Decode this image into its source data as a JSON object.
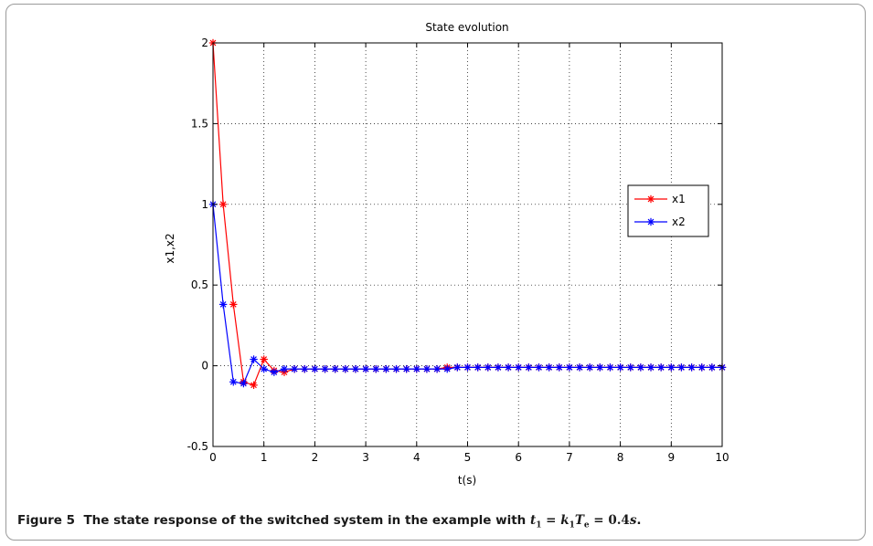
{
  "chart_data": {
    "type": "line",
    "title": "State evolution",
    "xlabel": "t(s)",
    "ylabel": "x1,x2",
    "xlim": [
      0,
      10
    ],
    "ylim": [
      -0.5,
      2
    ],
    "xticks": [
      0,
      1,
      2,
      3,
      4,
      5,
      6,
      7,
      8,
      9,
      10
    ],
    "xtick_labels": [
      "0",
      "1",
      "2",
      "3",
      "4",
      "5",
      "6",
      "7",
      "8",
      "9",
      "10"
    ],
    "yticks": [
      -0.5,
      0,
      0.5,
      1,
      1.5,
      2
    ],
    "ytick_labels": [
      "-0.5",
      "0",
      "0.5",
      "1",
      "1.5",
      "2"
    ],
    "grid": true,
    "legend_position": "right",
    "marker": "*",
    "x": [
      0,
      0.2,
      0.4,
      0.6,
      0.8,
      1.0,
      1.2,
      1.4,
      1.6,
      1.8,
      2.0,
      2.2,
      2.4,
      2.6,
      2.8,
      3.0,
      3.2,
      3.4,
      3.6,
      3.8,
      4.0,
      4.2,
      4.4,
      4.6,
      4.8,
      5.0,
      5.2,
      5.4,
      5.6,
      5.8,
      6.0,
      6.2,
      6.4,
      6.6,
      6.8,
      7.0,
      7.2,
      7.4,
      7.6,
      7.8,
      8.0,
      8.2,
      8.4,
      8.6,
      8.8,
      9.0,
      9.2,
      9.4,
      9.6,
      9.8,
      10.0
    ],
    "series": [
      {
        "name": "x1",
        "color": "#ff0000",
        "values": [
          2.0,
          1.0,
          0.38,
          -0.1,
          -0.12,
          0.04,
          -0.03,
          -0.04,
          -0.02,
          -0.02,
          -0.02,
          -0.02,
          -0.02,
          -0.02,
          -0.02,
          -0.02,
          -0.02,
          -0.02,
          -0.02,
          -0.02,
          -0.02,
          -0.02,
          -0.02,
          -0.01,
          -0.01,
          -0.01,
          -0.01,
          -0.01,
          -0.01,
          -0.01,
          -0.01,
          -0.01,
          -0.01,
          -0.01,
          -0.01,
          -0.01,
          -0.01,
          -0.01,
          -0.01,
          -0.01,
          -0.01,
          -0.01,
          -0.01,
          -0.01,
          -0.01,
          -0.01,
          -0.01,
          -0.01,
          -0.01,
          -0.01,
          -0.01
        ]
      },
      {
        "name": "x2",
        "color": "#0000ff",
        "values": [
          1.0,
          0.38,
          -0.1,
          -0.11,
          0.04,
          -0.02,
          -0.04,
          -0.02,
          -0.02,
          -0.02,
          -0.02,
          -0.02,
          -0.02,
          -0.02,
          -0.02,
          -0.02,
          -0.02,
          -0.02,
          -0.02,
          -0.02,
          -0.02,
          -0.02,
          -0.02,
          -0.02,
          -0.01,
          -0.01,
          -0.01,
          -0.01,
          -0.01,
          -0.01,
          -0.01,
          -0.01,
          -0.01,
          -0.01,
          -0.01,
          -0.01,
          -0.01,
          -0.01,
          -0.01,
          -0.01,
          -0.01,
          -0.01,
          -0.01,
          -0.01,
          -0.01,
          -0.01,
          -0.01,
          -0.01,
          -0.01,
          -0.01,
          -0.01
        ]
      }
    ]
  },
  "caption": {
    "label": "Figure 5",
    "text": "The state response of the switched system in the example with",
    "t": "t",
    "t_sub": "1",
    "eq1": " = ",
    "k": "k",
    "k_sub": "1",
    "T": "T",
    "T_sub": "e",
    "eq2": " = 0.4",
    "s": "s",
    "end": "."
  }
}
